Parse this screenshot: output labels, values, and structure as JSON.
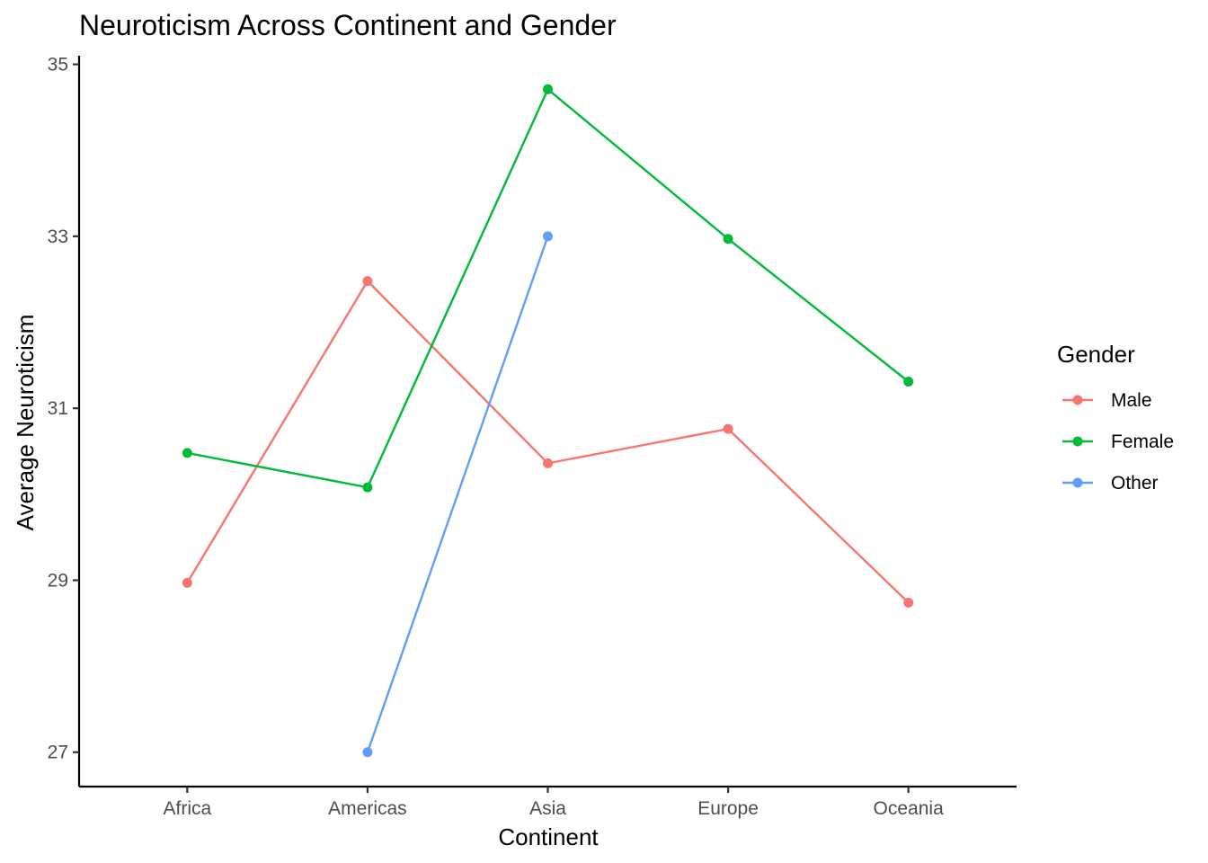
{
  "chart_data": {
    "type": "line",
    "title": "Neuroticism Across Continent and Gender",
    "xlabel": "Continent",
    "ylabel": "Average Neuroticism",
    "categories": [
      "Africa",
      "Americas",
      "Asia",
      "Europe",
      "Oceania"
    ],
    "yticks": [
      27,
      29,
      31,
      33,
      35
    ],
    "ylim": [
      26.6,
      35.1
    ],
    "grid": false,
    "legend": {
      "title": "Gender",
      "position": "right"
    },
    "series": [
      {
        "name": "Male",
        "color": "#F8766D",
        "values": [
          28.97,
          32.48,
          30.36,
          30.76,
          28.74
        ]
      },
      {
        "name": "Female",
        "color": "#00BA38",
        "values": [
          30.48,
          30.08,
          34.71,
          32.97,
          31.31
        ]
      },
      {
        "name": "Other",
        "color": "#619CFF",
        "values": [
          null,
          27.0,
          33.0,
          null,
          null
        ]
      }
    ]
  }
}
